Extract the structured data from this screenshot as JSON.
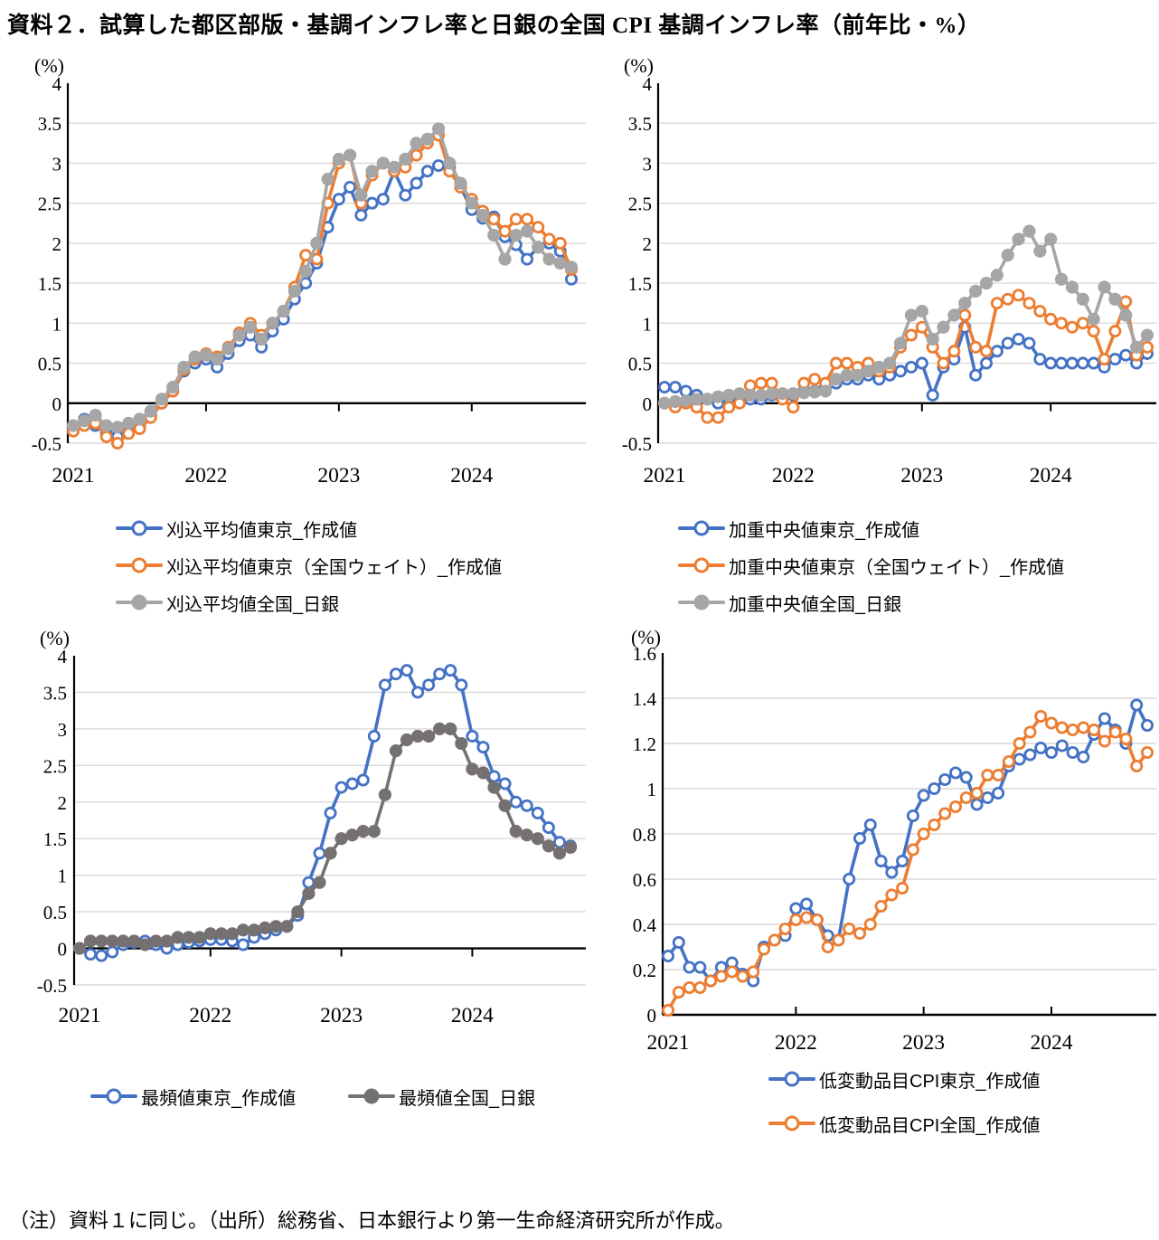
{
  "title": "資料２．試算した都区部版・基調インフレ率と日銀の全国 CPI 基調インフレ率（前年比・%）",
  "note": "（注）資料１に同じ。（出所）総務省、日本銀行より第一生命経済研究所が作成。",
  "colors": {
    "blue": "#4472C4",
    "orange": "#ED7D31",
    "gray": "#A6A6A6",
    "darkgray": "#767171"
  },
  "chart_data": [
    {
      "type": "line",
      "position": "top-left",
      "measure": "刈込平均値",
      "ylabel": "(%)",
      "ylim": [
        -0.5,
        4
      ],
      "yticks": [
        -0.5,
        0,
        0.5,
        1,
        1.5,
        2,
        2.5,
        3,
        3.5,
        4
      ],
      "x_tick_labels": [
        "2021",
        "2022",
        "2023",
        "2024"
      ],
      "x_frequency": "monthly",
      "x_range": "2021-01 to 2024-10",
      "grid": "horizontal",
      "series": [
        {
          "name": "刈込平均値東京_作成値",
          "color": "blue",
          "marker": "open",
          "values": [
            -0.3,
            -0.2,
            -0.28,
            -0.38,
            -0.42,
            -0.32,
            -0.28,
            -0.15,
            0.0,
            0.15,
            0.4,
            0.5,
            0.55,
            0.45,
            0.62,
            0.78,
            0.85,
            0.7,
            0.9,
            1.05,
            1.3,
            1.5,
            1.75,
            2.2,
            2.55,
            2.7,
            2.35,
            2.5,
            2.55,
            2.9,
            2.6,
            2.75,
            2.9,
            2.97,
            2.95,
            2.7,
            2.42,
            2.31,
            2.33,
            2.08,
            1.98,
            1.8,
            1.95,
            2.0,
            1.9,
            1.55
          ]
        },
        {
          "name": "刈込平均値東京（全国ウェイト）_作成値",
          "color": "orange",
          "marker": "open",
          "values": [
            -0.35,
            -0.28,
            -0.25,
            -0.42,
            -0.5,
            -0.38,
            -0.32,
            -0.18,
            0.0,
            0.15,
            0.42,
            0.55,
            0.62,
            0.58,
            0.7,
            0.88,
            1.0,
            0.85,
            1.0,
            1.15,
            1.45,
            1.85,
            1.8,
            2.5,
            3.0,
            3.1,
            2.5,
            2.85,
            3.0,
            2.9,
            2.95,
            3.1,
            3.25,
            3.35,
            2.9,
            2.7,
            2.55,
            2.4,
            2.3,
            2.15,
            2.3,
            2.3,
            2.2,
            2.05,
            2.0,
            1.67
          ]
        },
        {
          "name": "刈込平均値全国_日銀",
          "color": "gray",
          "marker": "filled",
          "values": [
            -0.28,
            -0.22,
            -0.15,
            -0.28,
            -0.3,
            -0.25,
            -0.2,
            -0.1,
            0.05,
            0.2,
            0.45,
            0.58,
            0.6,
            0.55,
            0.68,
            0.85,
            0.95,
            0.8,
            1.0,
            1.15,
            1.4,
            1.65,
            2.0,
            2.8,
            3.05,
            3.1,
            2.6,
            2.9,
            3.0,
            2.95,
            3.05,
            3.25,
            3.3,
            3.43,
            3.0,
            2.75,
            2.5,
            2.35,
            2.1,
            1.8,
            2.1,
            2.15,
            1.95,
            1.8,
            1.75,
            1.7
          ]
        }
      ]
    },
    {
      "type": "line",
      "position": "top-right",
      "measure": "加重中央値",
      "ylabel": "(%)",
      "ylim": [
        -0.5,
        4
      ],
      "yticks": [
        -0.5,
        0,
        0.5,
        1,
        1.5,
        2,
        2.5,
        3,
        3.5,
        4
      ],
      "x_tick_labels": [
        "2021",
        "2022",
        "2023",
        "2024"
      ],
      "x_frequency": "monthly",
      "x_range": "2021-01 to 2024-10",
      "grid": "horizontal",
      "series": [
        {
          "name": "加重中央値東京_作成値",
          "color": "blue",
          "marker": "open",
          "values": [
            0.2,
            0.2,
            0.15,
            0.1,
            0.05,
            0.0,
            0.0,
            0.05,
            0.05,
            0.05,
            0.1,
            0.1,
            0.1,
            0.15,
            0.15,
            0.2,
            0.25,
            0.3,
            0.3,
            0.35,
            0.3,
            0.35,
            0.4,
            0.45,
            0.5,
            0.1,
            0.45,
            0.55,
            0.95,
            0.35,
            0.5,
            0.65,
            0.75,
            0.8,
            0.75,
            0.55,
            0.5,
            0.5,
            0.5,
            0.5,
            0.5,
            0.45,
            0.55,
            0.6,
            0.5,
            0.62
          ]
        },
        {
          "name": "加重中央値東京（全国ウェイト）_作成値",
          "color": "orange",
          "marker": "open",
          "values": [
            0.0,
            -0.05,
            0.0,
            -0.05,
            -0.18,
            -0.18,
            -0.05,
            0.0,
            0.22,
            0.25,
            0.25,
            0.05,
            -0.05,
            0.25,
            0.3,
            0.25,
            0.5,
            0.5,
            0.45,
            0.5,
            0.4,
            0.45,
            0.7,
            0.85,
            0.95,
            0.7,
            0.5,
            0.65,
            1.1,
            0.7,
            0.65,
            1.25,
            1.3,
            1.35,
            1.25,
            1.15,
            1.05,
            1.0,
            0.95,
            1.0,
            0.9,
            0.55,
            0.9,
            1.27,
            0.6,
            0.7
          ]
        },
        {
          "name": "加重中央値全国_日銀",
          "color": "gray",
          "marker": "filled",
          "values": [
            0.0,
            0.02,
            0.03,
            0.05,
            0.05,
            0.08,
            0.1,
            0.12,
            0.1,
            0.1,
            0.12,
            0.12,
            0.12,
            0.13,
            0.14,
            0.15,
            0.3,
            0.35,
            0.35,
            0.4,
            0.45,
            0.5,
            0.75,
            1.1,
            1.15,
            0.8,
            0.95,
            1.1,
            1.25,
            1.4,
            1.5,
            1.6,
            1.85,
            2.05,
            2.15,
            1.9,
            2.05,
            1.55,
            1.45,
            1.3,
            1.05,
            1.45,
            1.3,
            1.1,
            0.7,
            0.85
          ]
        }
      ]
    },
    {
      "type": "line",
      "position": "bottom-left",
      "measure": "最頻値",
      "ylabel": "(%)",
      "ylim": [
        -0.5,
        4
      ],
      "yticks": [
        -0.5,
        0,
        0.5,
        1,
        1.5,
        2,
        2.5,
        3,
        3.5,
        4
      ],
      "x_tick_labels": [
        "2021",
        "2022",
        "2023",
        "2024"
      ],
      "x_frequency": "monthly",
      "x_range": "2021-01 to 2024-10",
      "grid": "horizontal",
      "series": [
        {
          "name": "最頻値東京_作成値",
          "color": "blue",
          "marker": "open",
          "values": [
            0.0,
            -0.08,
            -0.1,
            -0.05,
            0.05,
            0.08,
            0.1,
            0.05,
            0.0,
            0.05,
            0.08,
            0.1,
            0.12,
            0.12,
            0.1,
            0.05,
            0.15,
            0.2,
            0.25,
            0.3,
            0.45,
            0.9,
            1.3,
            1.85,
            2.2,
            2.25,
            2.3,
            2.9,
            3.6,
            3.75,
            3.8,
            3.5,
            3.6,
            3.75,
            3.8,
            3.6,
            2.9,
            2.75,
            2.35,
            2.25,
            2.0,
            1.95,
            1.85,
            1.65,
            1.45,
            1.4
          ]
        },
        {
          "name": "最頻値全国_日銀",
          "color": "darkgray",
          "marker": "filled",
          "values": [
            0.0,
            0.1,
            0.1,
            0.1,
            0.1,
            0.1,
            0.05,
            0.1,
            0.1,
            0.15,
            0.15,
            0.15,
            0.2,
            0.2,
            0.2,
            0.25,
            0.25,
            0.28,
            0.3,
            0.3,
            0.5,
            0.75,
            0.9,
            1.3,
            1.5,
            1.55,
            1.6,
            1.6,
            2.1,
            2.7,
            2.85,
            2.9,
            2.9,
            3.0,
            3.0,
            2.8,
            2.45,
            2.4,
            2.2,
            1.95,
            1.6,
            1.55,
            1.5,
            1.4,
            1.3,
            1.38
          ]
        }
      ]
    },
    {
      "type": "line",
      "position": "bottom-right",
      "measure": "低変動品目CPI",
      "ylabel": "(%)",
      "ylim": [
        0,
        1.6
      ],
      "yticks": [
        0,
        0.2,
        0.4,
        0.6,
        0.8,
        1,
        1.2,
        1.4,
        1.6
      ],
      "x_tick_labels": [
        "2021",
        "2022",
        "2023",
        "2024"
      ],
      "x_frequency": "monthly",
      "x_range": "2021-01 to 2024-10",
      "grid": "horizontal",
      "series": [
        {
          "name": "低変動品目CPI東京_作成値",
          "color": "blue",
          "marker": "open",
          "values": [
            0.26,
            0.32,
            0.21,
            0.21,
            0.15,
            0.21,
            0.23,
            0.18,
            0.15,
            0.3,
            0.33,
            0.35,
            0.47,
            0.49,
            0.42,
            0.35,
            0.33,
            0.6,
            0.78,
            0.84,
            0.68,
            0.63,
            0.68,
            0.88,
            0.97,
            1.0,
            1.04,
            1.07,
            1.05,
            0.93,
            0.96,
            0.98,
            1.1,
            1.13,
            1.15,
            1.18,
            1.16,
            1.19,
            1.16,
            1.14,
            1.24,
            1.31,
            1.26,
            1.2,
            1.37,
            1.28
          ]
        },
        {
          "name": "低変動品目CPI全国_作成値",
          "color": "orange",
          "marker": "open",
          "values": [
            0.02,
            0.1,
            0.12,
            0.12,
            0.15,
            0.17,
            0.19,
            0.17,
            0.19,
            0.29,
            0.33,
            0.38,
            0.42,
            0.43,
            0.42,
            0.3,
            0.33,
            0.38,
            0.36,
            0.4,
            0.48,
            0.53,
            0.56,
            0.73,
            0.8,
            0.84,
            0.89,
            0.92,
            0.96,
            0.98,
            1.06,
            1.06,
            1.12,
            1.2,
            1.25,
            1.32,
            1.29,
            1.27,
            1.26,
            1.27,
            1.26,
            1.21,
            1.25,
            1.22,
            1.1,
            1.16
          ]
        }
      ]
    }
  ]
}
